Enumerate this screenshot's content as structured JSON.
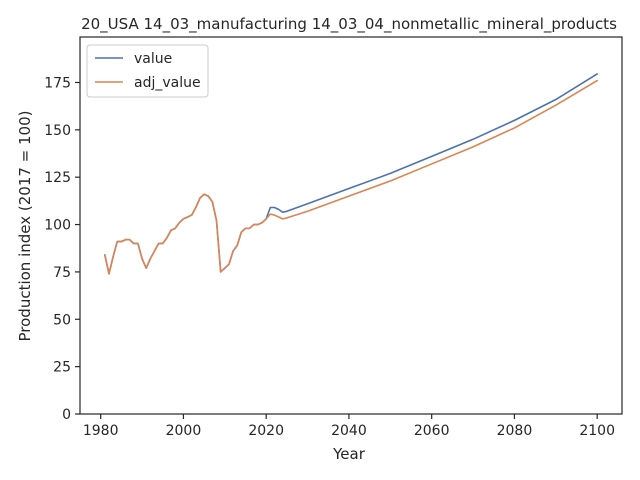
{
  "chart_data": {
    "type": "line",
    "title": "20_USA 14_03_manufacturing 14_03_04_nonmetallic_mineral_products",
    "xlabel": "Year",
    "ylabel": "Production index (2017 = 100)",
    "xlim": [
      1975,
      2106
    ],
    "ylim": [
      0,
      199
    ],
    "xticks": [
      1980,
      2000,
      2020,
      2040,
      2060,
      2080,
      2100
    ],
    "yticks": [
      0,
      25,
      50,
      75,
      100,
      125,
      150,
      175
    ],
    "legend_position": "upper-left",
    "grid": false,
    "series": [
      {
        "name": "value",
        "color": "#4c72b0",
        "x": [
          1981,
          1982,
          1983,
          1984,
          1985,
          1986,
          1987,
          1988,
          1989,
          1990,
          1991,
          1992,
          1993,
          1994,
          1995,
          1996,
          1997,
          1998,
          1999,
          2000,
          2001,
          2002,
          2003,
          2004,
          2005,
          2006,
          2007,
          2008,
          2009,
          2010,
          2011,
          2012,
          2013,
          2014,
          2015,
          2016,
          2017,
          2018,
          2019,
          2020,
          2021,
          2022,
          2023,
          2024,
          2025,
          2030,
          2040,
          2050,
          2060,
          2070,
          2080,
          2090,
          2100
        ],
        "y": [
          84,
          74,
          83,
          91,
          91,
          92,
          92,
          90,
          90,
          82,
          77,
          82,
          86,
          90,
          90,
          93,
          97,
          98,
          101,
          103,
          104,
          105,
          109,
          114,
          116,
          115,
          112,
          102,
          75,
          77,
          79,
          86,
          89,
          96,
          98,
          98,
          100,
          100,
          101,
          103,
          109,
          109,
          108,
          106.5,
          107,
          111,
          119,
          127,
          136,
          145,
          155,
          166,
          179.5
        ]
      },
      {
        "name": "adj_value",
        "color": "#dd8452",
        "x": [
          1981,
          1982,
          1983,
          1984,
          1985,
          1986,
          1987,
          1988,
          1989,
          1990,
          1991,
          1992,
          1993,
          1994,
          1995,
          1996,
          1997,
          1998,
          1999,
          2000,
          2001,
          2002,
          2003,
          2004,
          2005,
          2006,
          2007,
          2008,
          2009,
          2010,
          2011,
          2012,
          2013,
          2014,
          2015,
          2016,
          2017,
          2018,
          2019,
          2020,
          2021,
          2022,
          2023,
          2024,
          2025,
          2030,
          2040,
          2050,
          2060,
          2070,
          2080,
          2090,
          2100
        ],
        "y": [
          84,
          74,
          83,
          91,
          91,
          92,
          92,
          90,
          90,
          82,
          77,
          82,
          86,
          90,
          90,
          93,
          97,
          98,
          101,
          103,
          104,
          105,
          109,
          114,
          116,
          115,
          112,
          102,
          75,
          77,
          79,
          86,
          89,
          96,
          98,
          98,
          100,
          100,
          101,
          103,
          105.5,
          105,
          104,
          103,
          103.5,
          107,
          115,
          123,
          132,
          141,
          151,
          163,
          176
        ]
      }
    ]
  }
}
